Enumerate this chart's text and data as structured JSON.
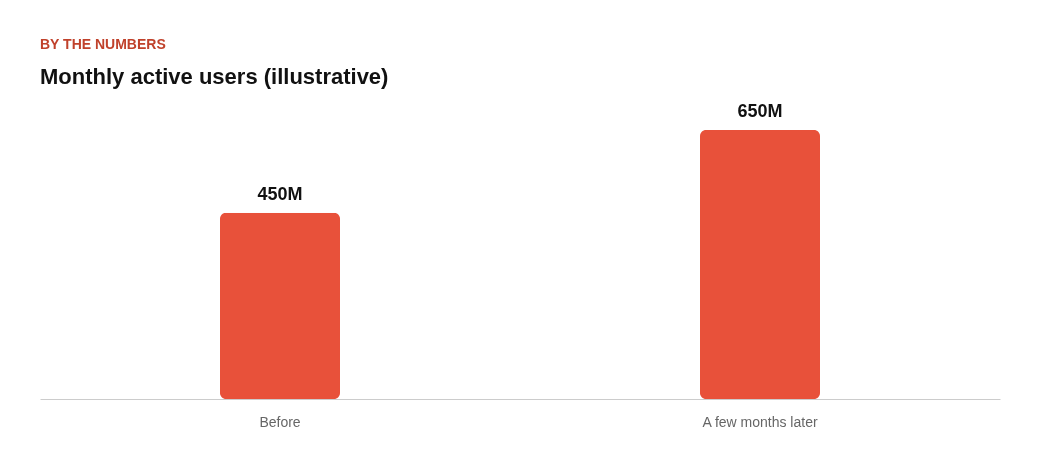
{
  "chart_data": {
    "type": "bar",
    "title": "Monthly active users (illustrative)",
    "annotations": [
      "BY THE NUMBERS"
    ],
    "categories": [
      "Before",
      "A few months later"
    ],
    "values": [
      450,
      650
    ],
    "color": "#e8513a",
    "value_labels": [
      "450M",
      "650M"
    ],
    "grid": false
  }
}
